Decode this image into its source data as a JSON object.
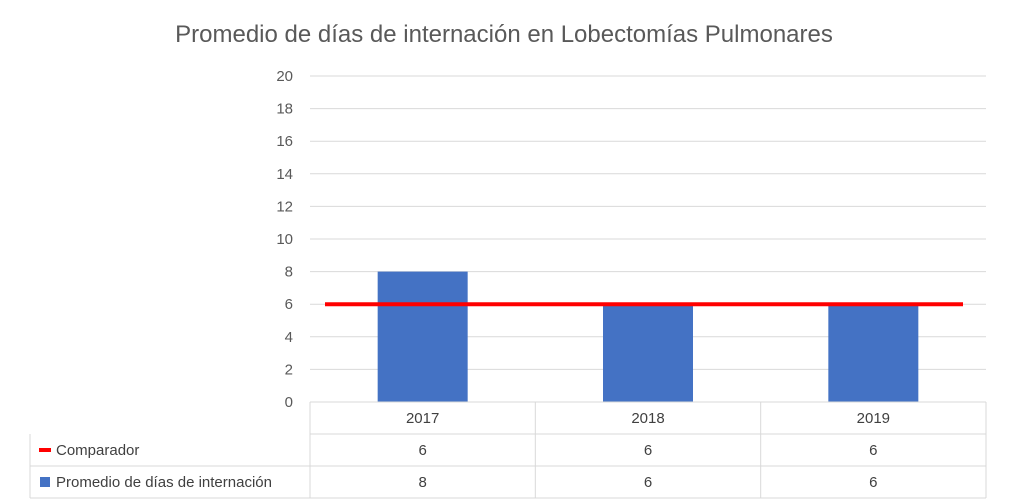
{
  "chart_data": {
    "type": "bar",
    "title": "Promedio de días de internación en Lobectomías Pulmonares",
    "categories": [
      "2017",
      "2018",
      "2019"
    ],
    "y_ticks": [
      "0",
      "2",
      "4",
      "6",
      "8",
      "10",
      "12",
      "14",
      "16",
      "18",
      "20"
    ],
    "ylim": [
      0,
      20
    ],
    "grid": true,
    "legend_position": "data-table-bottom",
    "series": [
      {
        "name": "Comparador",
        "kind": "line",
        "color": "#ff0000",
        "values": [
          6,
          6,
          6
        ]
      },
      {
        "name": "Promedio de días de internación",
        "kind": "bar",
        "color": "#4472c4",
        "values": [
          8,
          6,
          6
        ]
      }
    ],
    "table_rows": [
      {
        "label": "Comparador",
        "values": [
          "6",
          "6",
          "6"
        ]
      },
      {
        "label": "Promedio de días de internación",
        "values": [
          "8",
          "6",
          "6"
        ]
      }
    ]
  }
}
